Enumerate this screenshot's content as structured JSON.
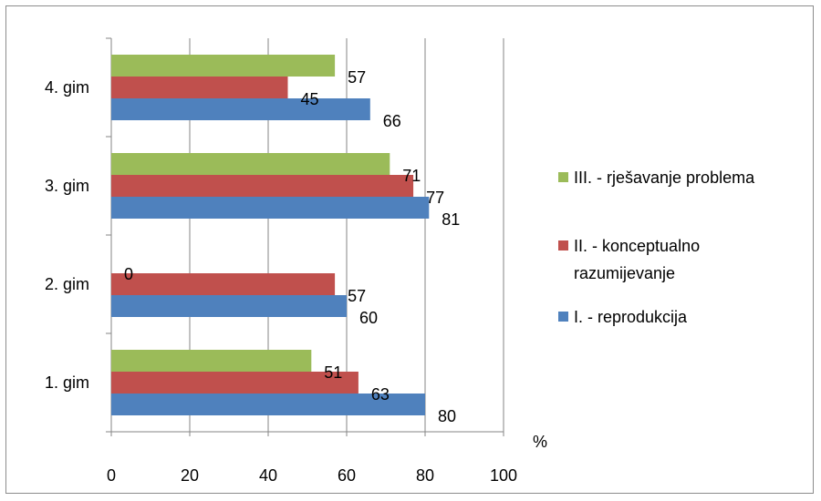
{
  "chart_data": {
    "type": "bar",
    "orientation": "horizontal",
    "categories": [
      "1. gim",
      "2. gim",
      "3. gim",
      "4. gim"
    ],
    "series": [
      {
        "name": "I. - reprodukcija",
        "color": "#4f81bd",
        "values": [
          80,
          60,
          81,
          66
        ]
      },
      {
        "name": "II. - konceptualno razumijevanje",
        "legend_lines": [
          "II. - konceptualno",
          "razumijevanje"
        ],
        "color": "#c0504d",
        "values": [
          63,
          57,
          77,
          45
        ]
      },
      {
        "name": "III. - rješavanje problema",
        "color": "#9bbb59",
        "values": [
          51,
          0,
          71,
          57
        ]
      }
    ],
    "xlim": [
      0,
      100
    ],
    "xticks": [
      "0",
      "20",
      "40",
      "60",
      "80",
      "100"
    ],
    "x_unit": "%",
    "grid": "vertical",
    "legend_position": "right"
  }
}
